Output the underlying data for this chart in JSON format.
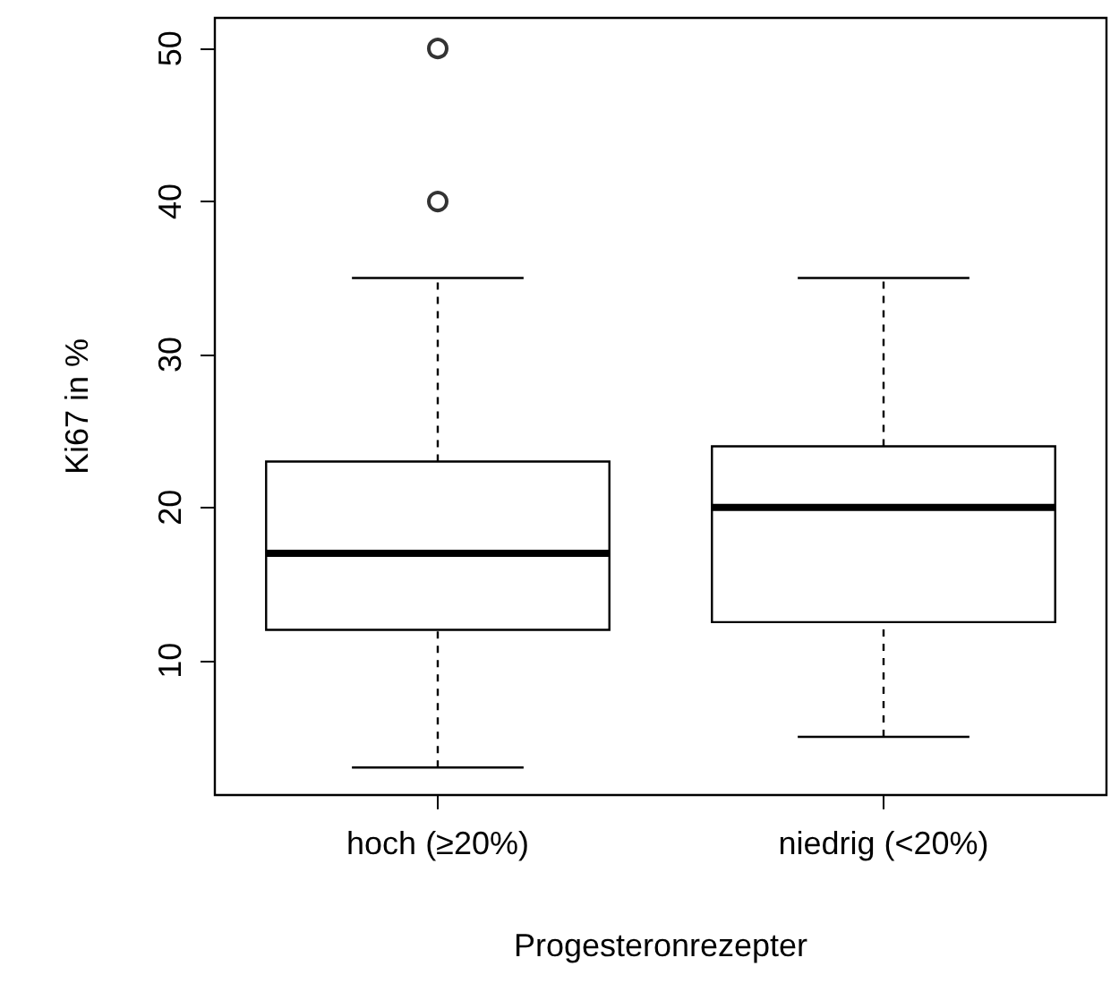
{
  "chart_data": {
    "type": "box",
    "xlabel": "Progesteronrezepter",
    "ylabel": "Ki67 in %",
    "categories": [
      "hoch (≥20%)",
      "niedrig (<20%)"
    ],
    "boxes": [
      {
        "low": 3,
        "q1": 12,
        "median": 17,
        "q3": 23,
        "high": 35,
        "outliers": [
          40,
          50
        ]
      },
      {
        "low": 5,
        "q1": 12.5,
        "median": 20,
        "q3": 24,
        "high": 35
      }
    ],
    "ylim": [
      1.2,
      52
    ],
    "yticks": [
      10,
      20,
      30,
      40,
      50
    ],
    "grid": false
  }
}
